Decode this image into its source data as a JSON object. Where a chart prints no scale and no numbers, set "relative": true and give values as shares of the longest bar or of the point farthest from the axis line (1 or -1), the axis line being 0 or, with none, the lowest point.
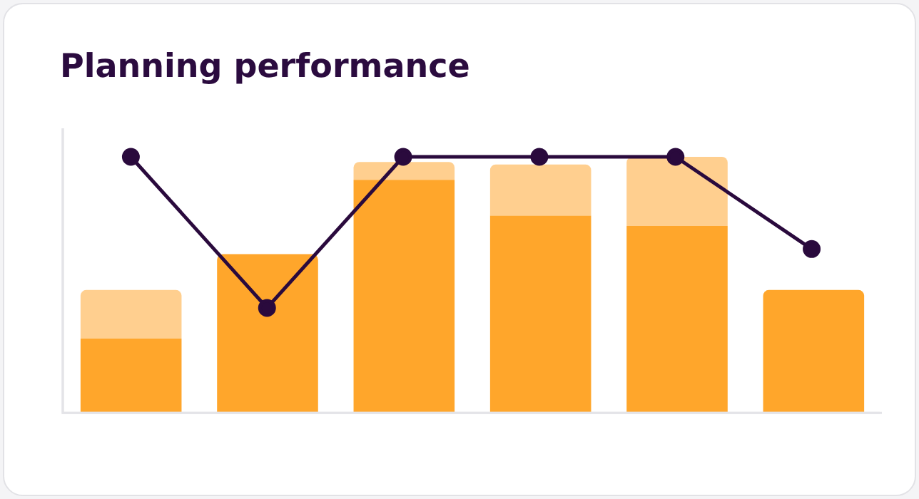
{
  "chart_data": [
    {
      "type": "bar",
      "title": "Planning performance",
      "relative": true,
      "stacked": true,
      "categories": [
        null,
        null,
        null,
        null,
        null,
        null
      ],
      "series": [
        {
          "color": "#ffa62b",
          "values": [
            0.29,
            0.62,
            0.91,
            0.77,
            0.73,
            0.48
          ]
        },
        {
          "color": "#ffcf8f",
          "values": [
            0.19,
            null,
            0.07,
            0.2,
            0.27,
            null
          ]
        }
      ],
      "grid": false,
      "legend": false
    },
    {
      "type": "line",
      "relative": true,
      "categories": [
        null,
        null,
        null,
        null,
        null,
        null
      ],
      "series": [
        {
          "color": "#2a0a3d",
          "values": [
            1,
            0.41,
            1,
            1,
            1,
            0.64
          ]
        }
      ],
      "grid": false,
      "legend": false,
      "marker": "circle",
      "line_style": "solid"
    }
  ]
}
